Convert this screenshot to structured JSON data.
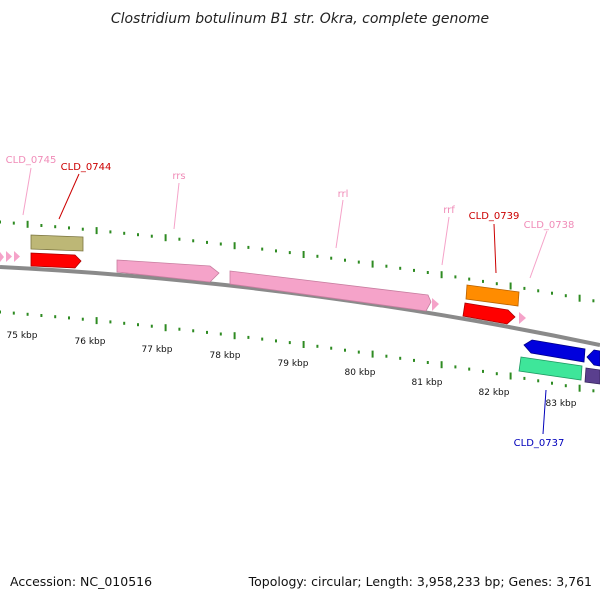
{
  "title": "Clostridium botulinum B1 str. Okra, complete genome",
  "footer": {
    "accession": "Accession: NC_010516",
    "topology": "Topology: circular; Length: 3,958,233 bp; Genes: 3,761"
  },
  "colors": {
    "backbone": "#8a8a8a",
    "ticks": "#2e8b22",
    "pink": "#f5a3c9",
    "red": "#ff0000",
    "olive": "#bdb776",
    "orange": "#ff8c00",
    "blue": "#0000dd",
    "teal": "#3ee69a",
    "purple": "#5a3f8e",
    "label_pink": "#f08cb8",
    "label_red": "#cc0000",
    "label_blue": "#0000bb"
  },
  "kbp_labels": [
    "75 kbp",
    "76 kbp",
    "77 kbp",
    "78 kbp",
    "79 kbp",
    "80 kbp",
    "81 kbp",
    "82 kbp",
    "83 kbp"
  ],
  "gene_labels": [
    {
      "text": "CLD_0745",
      "color": "label_pink"
    },
    {
      "text": "CLD_0744",
      "color": "label_red"
    },
    {
      "text": "rrs",
      "color": "label_pink"
    },
    {
      "text": "rrl",
      "color": "label_pink"
    },
    {
      "text": "rrf",
      "color": "label_pink"
    },
    {
      "text": "CLD_0739",
      "color": "label_red"
    },
    {
      "text": "CLD_0738",
      "color": "label_pink"
    },
    {
      "text": "CLD_0737",
      "color": "label_blue"
    }
  ]
}
